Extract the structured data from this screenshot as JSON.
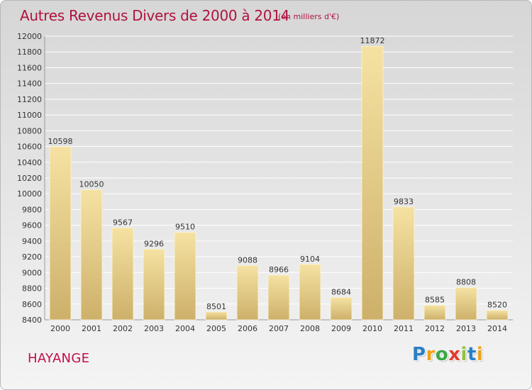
{
  "title": "Autres Revenus Divers de 2000 à 2014",
  "subtitle": "(en milliers d'€)",
  "location": "HAYANGE",
  "brand": {
    "letters": [
      "P",
      "r",
      "o",
      "x",
      "i",
      "t",
      "i"
    ],
    "colors": [
      "#2a7fc4",
      "#f0a21a",
      "#3aa845",
      "#e23a2e",
      "#8fc43a",
      "#2a7fc4",
      "#f0a21a"
    ]
  },
  "colors": {
    "title": "#b0123f",
    "bar_light": "#f5e2a2",
    "bar_dark": "#cdb06a",
    "grid": "#ffffff"
  },
  "chart_data": {
    "type": "bar",
    "title": "Autres Revenus Divers de 2000 à 2014",
    "subtitle": "(en milliers d'€)",
    "categories": [
      "2000",
      "2001",
      "2002",
      "2003",
      "2004",
      "2005",
      "2006",
      "2007",
      "2008",
      "2009",
      "2010",
      "2011",
      "2012",
      "2013",
      "2014"
    ],
    "values": [
      10598,
      10050,
      9567,
      9296,
      9510,
      8501,
      9088,
      8966,
      9104,
      8684,
      11872,
      9833,
      8585,
      8808,
      8520
    ],
    "ylim": [
      8400,
      12000
    ],
    "yticks": [
      8400,
      8600,
      8800,
      9000,
      9200,
      9400,
      9600,
      9800,
      10000,
      10200,
      10400,
      10600,
      10800,
      11000,
      11200,
      11400,
      11600,
      11800,
      12000
    ],
    "grid": true,
    "legend": "none"
  }
}
